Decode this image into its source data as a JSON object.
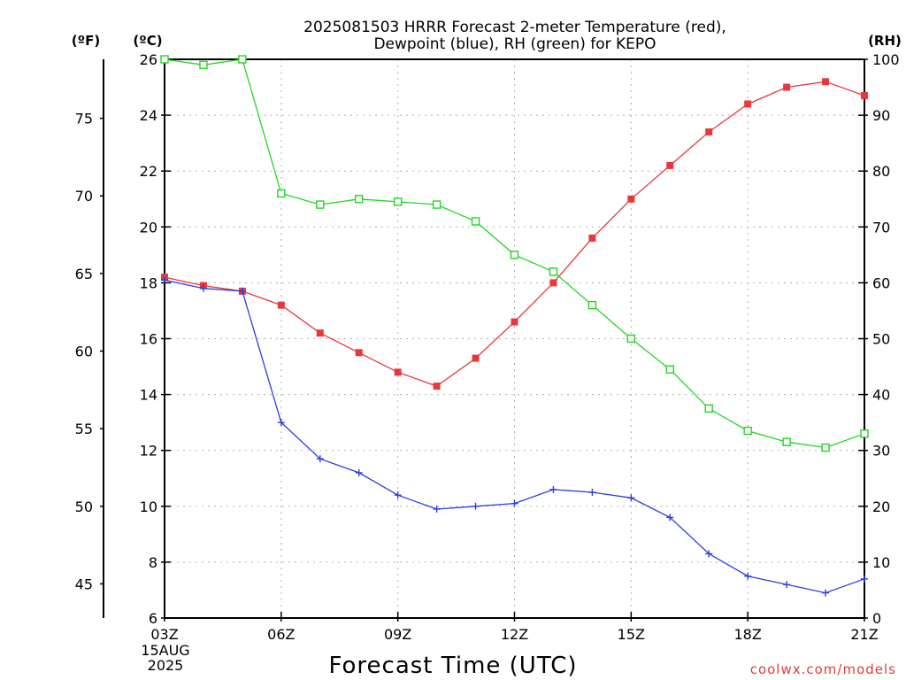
{
  "chart_data": {
    "type": "line",
    "title": "2025081503 HRRR Forecast 2-meter Temperature (red),",
    "subtitle": "Dewpoint (blue), RH (green) for KEPO",
    "xlabel": "Forecast Time (UTC)",
    "credit": "coolwx.com/models",
    "date_line1": "15AUG",
    "date_line2": "2025",
    "unit_f": "(ºF)",
    "unit_c": "(ºC)",
    "unit_rh": "(RH)",
    "x_hours": [
      3,
      4,
      5,
      6,
      7,
      8,
      9,
      10,
      11,
      12,
      13,
      14,
      15,
      16,
      17,
      18,
      19,
      20,
      21
    ],
    "xlim": [
      3,
      21
    ],
    "x_ticks": [
      3,
      6,
      9,
      12,
      15,
      18,
      21
    ],
    "x_tick_labels": [
      "03Z",
      "06Z",
      "09Z",
      "12Z",
      "15Z",
      "18Z",
      "21Z"
    ],
    "ylim_c": [
      6,
      26
    ],
    "y_ticks_c": [
      6,
      8,
      10,
      12,
      14,
      16,
      18,
      20,
      22,
      24,
      26
    ],
    "y_ticks_f": [
      45,
      50,
      55,
      60,
      65,
      70,
      75
    ],
    "ylim_rh": [
      0,
      100
    ],
    "y_ticks_rh": [
      0,
      10,
      20,
      30,
      40,
      50,
      60,
      70,
      80,
      90,
      100
    ],
    "grid": true,
    "series": [
      {
        "key": "temperature",
        "axis": "c",
        "color": "#e8383d",
        "marker": "filled-square",
        "values": [
          18.2,
          17.9,
          17.7,
          17.2,
          16.2,
          15.5,
          14.8,
          14.3,
          15.3,
          16.6,
          18.0,
          19.6,
          21.0,
          22.2,
          23.4,
          24.4,
          25.0,
          25.2,
          24.7
        ]
      },
      {
        "key": "dewpoint",
        "axis": "c",
        "color": "#2b3fe0",
        "marker": "plus",
        "values": [
          18.1,
          17.8,
          17.7,
          13.0,
          11.7,
          11.2,
          10.4,
          9.9,
          10.0,
          10.1,
          10.6,
          10.5,
          10.3,
          9.6,
          8.3,
          7.5,
          7.2,
          6.9,
          7.4
        ]
      },
      {
        "key": "rh",
        "axis": "rh",
        "color": "#22d622",
        "marker": "open-square",
        "values": [
          100,
          99,
          100,
          76,
          74,
          75,
          74.5,
          74,
          71,
          65,
          62,
          56,
          50,
          44.5,
          37.5,
          33.5,
          31.5,
          30.5,
          33
        ]
      }
    ]
  }
}
